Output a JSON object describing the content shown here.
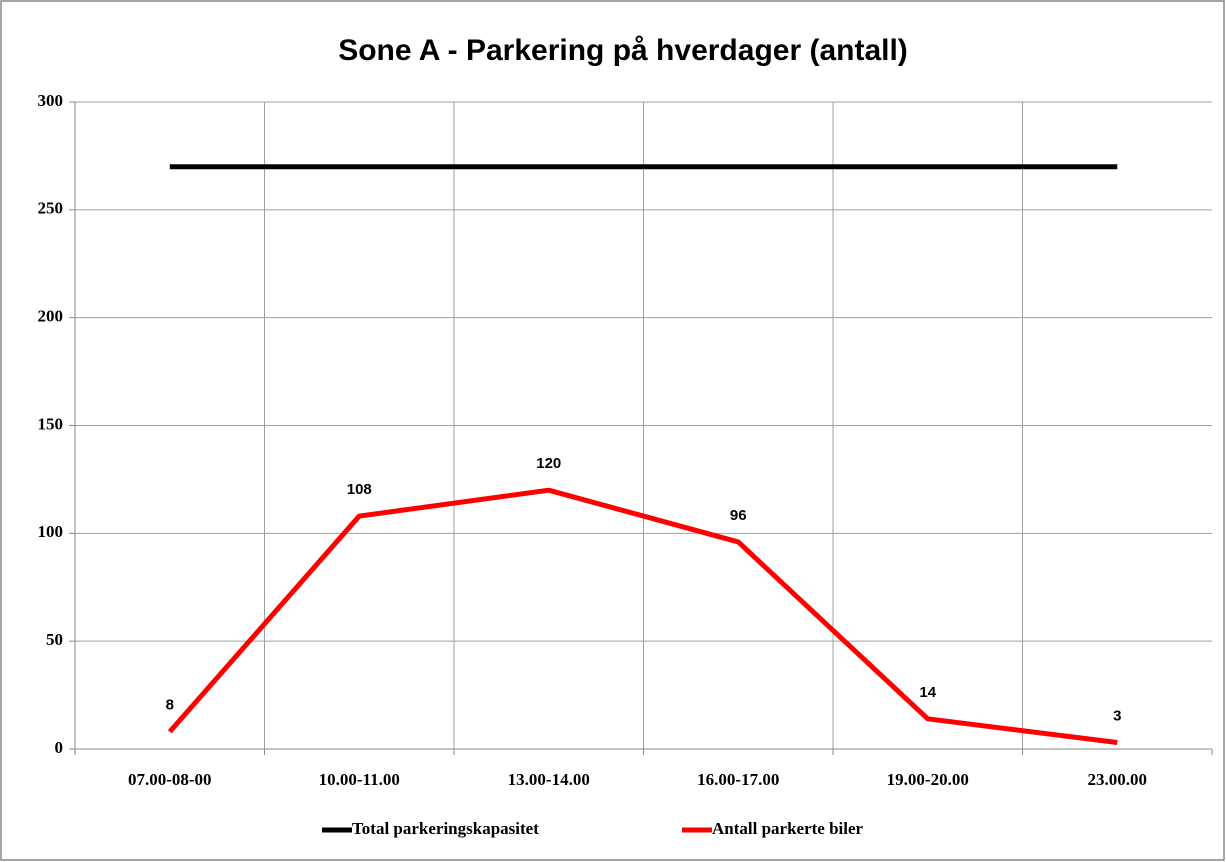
{
  "chart_data": {
    "type": "line",
    "title": "Sone A - Parkering på hverdager (antall)",
    "categories": [
      "07.00-08-00",
      "10.00-11.00",
      "13.00-14.00",
      "16.00-17.00",
      "19.00-20.00",
      "23.00.00"
    ],
    "series": [
      {
        "name": "Total parkeringskapasitet",
        "color": "#000000",
        "values": [
          270,
          270,
          270,
          270,
          270,
          270
        ],
        "show_labels": false
      },
      {
        "name": "Antall parkerte biler",
        "color": "#ff0000",
        "values": [
          8,
          108,
          120,
          96,
          14,
          3
        ],
        "show_labels": true
      }
    ],
    "ylim": [
      0,
      300
    ],
    "yticks": [
      0,
      50,
      100,
      150,
      200,
      250,
      300
    ],
    "grid": true,
    "legend": "bottom"
  }
}
